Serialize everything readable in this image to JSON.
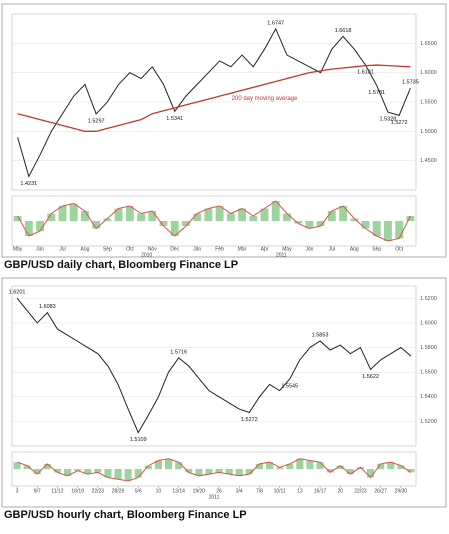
{
  "chart_data": [
    {
      "type": "line",
      "caption": "GBP/USD daily chart, Bloomberg Finance LP",
      "categories": [
        "May",
        null,
        "Jun",
        null,
        "Jul",
        null,
        "Aug",
        null,
        "Sep",
        null,
        "Oct",
        null,
        "Nov",
        null,
        "Dec",
        null,
        "Jan",
        null,
        "Feb",
        null,
        "Mar",
        null,
        "Apr",
        null,
        "May",
        null,
        "Jun",
        null,
        "Jul",
        null,
        "Aug",
        null,
        "Sep",
        null,
        "Oct",
        null
      ],
      "years": [
        "2010",
        "2011"
      ],
      "series": [
        {
          "name": "GBP/USD",
          "color": "#222222",
          "values": [
            1.49,
            1.4231,
            1.46,
            1.5,
            1.53,
            1.56,
            1.58,
            1.5297,
            1.55,
            1.58,
            1.6,
            1.59,
            1.61,
            1.58,
            1.5341,
            1.56,
            1.58,
            1.6,
            1.62,
            1.61,
            1.63,
            1.61,
            1.64,
            1.6747,
            1.63,
            1.62,
            1.61,
            1.6,
            1.64,
            1.6618,
            1.64,
            1.6131,
            1.5781,
            1.5328,
            1.5272,
            1.5735
          ]
        },
        {
          "name": "200 day moving average",
          "color": "#c0392b",
          "values": [
            1.53,
            1.525,
            1.52,
            1.515,
            1.51,
            1.505,
            1.5,
            1.5,
            1.505,
            1.51,
            1.515,
            1.52,
            1.53,
            1.535,
            1.54,
            1.545,
            1.55,
            1.555,
            1.56,
            1.565,
            1.57,
            1.575,
            1.58,
            1.585,
            1.59,
            1.595,
            1.6,
            1.603,
            1.606,
            1.608,
            1.61,
            1.612,
            1.613,
            1.612,
            1.611,
            1.61
          ]
        }
      ],
      "annotations": [
        "1.4231",
        "1.5297",
        "1.5341",
        "1.6747",
        "1.6618",
        "1.6131",
        "1.5781",
        "1.5328",
        "1.5272",
        "1.5735"
      ],
      "ylim": [
        1.4,
        1.7
      ],
      "yticks": [
        {
          "value": 1.45,
          "label": "1.4500"
        },
        {
          "value": 1.5,
          "label": "1.5000"
        },
        {
          "value": 1.55,
          "label": "1.5500"
        },
        {
          "value": 1.6,
          "label": "1.6000"
        },
        {
          "value": 1.65,
          "label": "1.6500"
        }
      ],
      "grid": true,
      "indicator": {
        "ylim": [
          -1,
          1
        ],
        "color": "#d9534f",
        "bar_color": "#5cb85c",
        "values": [
          0.2,
          -0.6,
          -0.4,
          0.3,
          0.6,
          0.7,
          0.4,
          -0.3,
          0.1,
          0.5,
          0.6,
          0.3,
          0.4,
          -0.2,
          -0.6,
          -0.2,
          0.3,
          0.5,
          0.6,
          0.3,
          0.5,
          0.2,
          0.5,
          0.8,
          0.3,
          -0.1,
          -0.3,
          -0.2,
          0.4,
          0.6,
          0.1,
          -0.3,
          -0.6,
          -0.8,
          -0.7,
          0.2
        ]
      }
    },
    {
      "type": "line",
      "caption": "GBP/USD hourly chart, Bloomberg Finance LP",
      "categories": [
        "3",
        null,
        "9/7",
        null,
        "11/12",
        null,
        "18/19",
        null,
        "22/23",
        null,
        "28/29",
        null,
        "5/6",
        null,
        "10",
        null,
        "13/14",
        null,
        "19/20",
        null,
        "26",
        null,
        "3/4",
        null,
        "7/8",
        null,
        "10/11",
        null,
        "13",
        null,
        "16/17",
        null,
        "20",
        null,
        "22/23",
        null,
        "26/27",
        null,
        "29/30",
        null
      ],
      "years": [
        "2011"
      ],
      "series": [
        {
          "name": "GBP/USD",
          "color": "#222222",
          "values": [
            1.6201,
            1.61,
            1.6,
            1.6083,
            1.595,
            1.59,
            1.585,
            1.58,
            1.575,
            1.565,
            1.55,
            1.53,
            1.5109,
            1.525,
            1.54,
            1.56,
            1.5716,
            1.565,
            1.555,
            1.545,
            1.54,
            1.535,
            1.53,
            1.5272,
            1.54,
            1.55,
            1.545,
            1.5545,
            1.57,
            1.58,
            1.5853,
            1.578,
            1.582,
            1.575,
            1.58,
            1.5622,
            1.57,
            1.575,
            1.58,
            1.573
          ]
        }
      ],
      "annotations": [
        "1.6201",
        "1.6083",
        "1.5109",
        "1.5716",
        "1.5272",
        "1.5545",
        "1.5853",
        "1.5622"
      ],
      "ylim": [
        1.5,
        1.63
      ],
      "yticks": [
        {
          "value": 1.52,
          "label": "1.5200"
        },
        {
          "value": 1.54,
          "label": "1.5400"
        },
        {
          "value": 1.56,
          "label": "1.5600"
        },
        {
          "value": 1.58,
          "label": "1.5800"
        },
        {
          "value": 1.6,
          "label": "1.6000"
        },
        {
          "value": 1.62,
          "label": "1.6200"
        }
      ],
      "grid": true,
      "indicator": {
        "ylim": [
          -1,
          1
        ],
        "color": "#d9534f",
        "bar_color": "#5cb85c",
        "values": [
          0.4,
          0.2,
          -0.3,
          0.3,
          -0.2,
          -0.4,
          -0.1,
          -0.3,
          -0.2,
          -0.5,
          -0.6,
          -0.7,
          -0.5,
          0.2,
          0.5,
          0.6,
          0.4,
          -0.2,
          -0.4,
          -0.3,
          -0.2,
          -0.3,
          -0.4,
          -0.3,
          0.3,
          0.4,
          0.1,
          0.3,
          0.6,
          0.5,
          0.4,
          -0.2,
          0.2,
          -0.3,
          0.1,
          -0.5,
          0.3,
          0.4,
          0.2,
          -0.2
        ]
      }
    }
  ]
}
